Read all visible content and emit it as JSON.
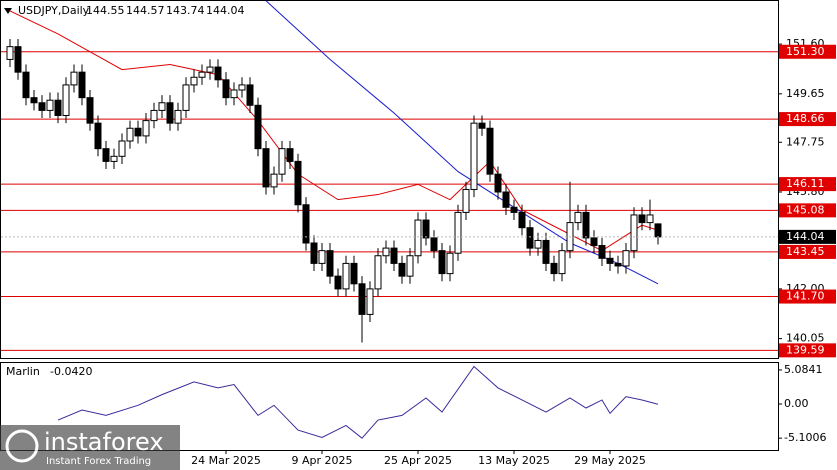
{
  "chart_data": {
    "type": "candlestick",
    "title": "USDJPY,Daily",
    "categories": [
      null,
      null,
      null,
      null,
      null,
      null,
      null,
      null,
      null,
      null,
      null,
      null,
      null,
      null,
      null,
      null,
      null,
      null,
      null,
      null,
      null,
      null,
      null,
      null,
      null,
      null,
      null,
      "24 Mar 2025",
      null,
      null,
      null,
      null,
      null,
      null,
      null,
      null,
      null,
      null,
      null,
      "9 Apr 2025",
      null,
      null,
      null,
      null,
      null,
      null,
      null,
      null,
      null,
      null,
      null,
      "25 Apr 2025",
      null,
      null,
      null,
      null,
      null,
      null,
      null,
      null,
      null,
      null,
      null,
      "13 May 2025",
      null,
      null,
      null,
      null,
      null,
      null,
      null,
      null,
      null,
      null,
      null,
      "29 May 2025",
      null,
      null,
      null,
      null,
      null,
      null
    ],
    "open": [
      151.0,
      151.5,
      150.5,
      149.5,
      149.3,
      149.0,
      149.4,
      148.8,
      150.0,
      150.5,
      149.5,
      148.5,
      147.5,
      147.0,
      147.2,
      147.8,
      148.3,
      148.0,
      148.6,
      149.0,
      149.3,
      148.5,
      149.0,
      150.0,
      150.3,
      150.5,
      150.7,
      150.2,
      149.5,
      149.8,
      150.0,
      149.2,
      147.5,
      146.0,
      146.5,
      147.5,
      147.0,
      145.3,
      143.8,
      143.0,
      143.5,
      142.5,
      142.0,
      143.0,
      142.2,
      141.0,
      142.0,
      143.3,
      143.6,
      143.0,
      142.5,
      143.3,
      144.7,
      144.0,
      143.5,
      142.6,
      143.4,
      145.0,
      145.9,
      148.5,
      148.3,
      146.5,
      145.8,
      145.2,
      145.0,
      144.4,
      143.6,
      143.9,
      143.0,
      142.6,
      143.5,
      144.6,
      145.0,
      144.0,
      143.7,
      143.2,
      143.0,
      142.9,
      143.5,
      144.9,
      144.6,
      144.55
    ],
    "high": [
      151.8,
      151.8,
      150.8,
      149.8,
      149.6,
      149.7,
      149.7,
      150.3,
      150.8,
      150.8,
      149.8,
      148.8,
      147.8,
      147.5,
      148.1,
      148.6,
      148.6,
      148.9,
      149.3,
      149.6,
      149.6,
      149.3,
      150.3,
      150.6,
      150.8,
      151.0,
      151.0,
      150.5,
      150.1,
      150.3,
      150.3,
      149.5,
      147.8,
      146.8,
      147.8,
      147.8,
      147.3,
      145.6,
      144.1,
      143.8,
      143.8,
      142.8,
      143.3,
      143.3,
      142.5,
      142.3,
      143.6,
      143.9,
      143.9,
      143.3,
      143.6,
      145.0,
      145.0,
      144.3,
      143.8,
      143.7,
      145.3,
      146.2,
      148.8,
      148.8,
      148.6,
      146.8,
      146.1,
      145.5,
      145.3,
      144.7,
      144.2,
      144.2,
      143.3,
      143.8,
      146.2,
      145.3,
      145.3,
      144.3,
      144.0,
      143.5,
      143.3,
      143.8,
      145.2,
      145.2,
      145.5,
      144.57
    ],
    "low": [
      150.7,
      150.2,
      149.2,
      149.0,
      148.7,
      148.7,
      148.5,
      148.5,
      149.7,
      149.2,
      148.2,
      147.2,
      146.7,
      146.7,
      146.9,
      147.5,
      147.7,
      147.7,
      148.3,
      148.7,
      148.2,
      148.2,
      148.7,
      149.7,
      150.0,
      150.2,
      149.9,
      149.2,
      149.2,
      149.5,
      148.9,
      147.2,
      145.7,
      145.7,
      146.2,
      146.7,
      145.0,
      143.5,
      142.7,
      142.7,
      142.2,
      141.7,
      141.7,
      141.9,
      139.9,
      140.7,
      141.7,
      143.0,
      142.7,
      142.2,
      142.2,
      143.0,
      143.7,
      143.2,
      142.3,
      142.3,
      143.1,
      144.7,
      145.6,
      148.0,
      146.2,
      145.5,
      144.9,
      144.7,
      144.1,
      143.3,
      143.3,
      142.7,
      142.3,
      142.3,
      143.2,
      144.3,
      143.7,
      143.4,
      142.9,
      142.7,
      142.6,
      142.6,
      143.2,
      144.3,
      144.3,
      143.74
    ],
    "close": [
      151.5,
      150.5,
      149.5,
      149.3,
      149.0,
      149.4,
      148.8,
      150.0,
      150.5,
      149.5,
      148.5,
      147.5,
      147.0,
      147.2,
      147.8,
      148.3,
      148.0,
      148.6,
      149.0,
      149.3,
      148.5,
      149.0,
      150.0,
      150.3,
      150.5,
      150.7,
      150.2,
      149.5,
      149.8,
      150.0,
      149.2,
      147.5,
      146.0,
      146.5,
      147.5,
      147.0,
      145.3,
      143.8,
      143.0,
      143.5,
      142.5,
      142.0,
      143.0,
      142.2,
      141.0,
      142.0,
      143.3,
      143.6,
      143.0,
      142.5,
      143.3,
      144.7,
      144.0,
      143.5,
      142.6,
      143.4,
      145.0,
      145.9,
      148.5,
      148.3,
      146.5,
      145.8,
      145.2,
      145.0,
      144.4,
      143.6,
      143.9,
      143.0,
      142.6,
      143.5,
      144.6,
      145.0,
      144.0,
      143.7,
      143.2,
      143.0,
      142.9,
      143.5,
      144.9,
      144.6,
      144.9,
      144.04
    ],
    "up_color": "#ffffff",
    "down_color": "#000000",
    "ylim": [
      139.29,
      153.33
    ],
    "yticks": [
      {
        "value": 151.6,
        "label": "151.60"
      },
      149.65,
      147.75,
      {
        "value": 145.8,
        "label": "145.80"
      },
      {
        "value": 142.0,
        "label": "142.00"
      },
      140.05
    ],
    "overlays": [
      {
        "color": "#e00000",
        "x": [
          0,
          6,
          14,
          20,
          26,
          31,
          36,
          41,
          46,
          51,
          55,
          60,
          64,
          69,
          74,
          79,
          81
        ],
        "values": [
          152.9,
          152.0,
          150.6,
          150.8,
          150.4,
          148.6,
          146.5,
          145.5,
          145.7,
          146.1,
          145.5,
          147.0,
          145.1,
          144.3,
          143.5,
          144.5,
          144.3
        ]
      },
      {
        "color": "#1a1ad0",
        "x": [
          32,
          40,
          48,
          56,
          63,
          70,
          76,
          81
        ],
        "values": [
          153.3,
          151.0,
          148.9,
          146.6,
          145.2,
          143.8,
          143.0,
          142.2
        ]
      }
    ],
    "levels": [
      {
        "value": 151.3,
        "label": "151.30"
      },
      148.66,
      146.11,
      145.08,
      143.45,
      {
        "value": 141.7,
        "label": "141.70"
      },
      139.59
    ],
    "level_color": "#e00000",
    "indicator": {
      "type": "line",
      "name": "Marlin",
      "current": {
        "value": -0.042,
        "label": "-0.0420"
      },
      "color": "#3a2a9a",
      "x": [
        6,
        9,
        12,
        16,
        19,
        23,
        26,
        28,
        31,
        33,
        36,
        39,
        42,
        44,
        46,
        49,
        52,
        54,
        58,
        61,
        64,
        67,
        70,
        72,
        74,
        75,
        77,
        79,
        81
      ],
      "values": [
        -2.4,
        -0.9,
        -1.7,
        -0.2,
        1.4,
        3.3,
        2.4,
        2.9,
        -1.7,
        -0.2,
        -3.9,
        -5.0,
        -3.2,
        -5.1,
        -2.4,
        -1.7,
        0.9,
        -1.2,
        5.6,
        2.4,
        0.6,
        -1.2,
        0.9,
        -0.6,
        0.6,
        -1.4,
        1.1,
        0.6,
        -0.042
      ],
      "ylim": [
        -6.87,
        6.27
      ],
      "yticks": [
        5.0841,
        {
          "value": 0,
          "label": "0.00"
        },
        -5.1006
      ]
    },
    "watermark": {
      "brand": "instaforex",
      "slogan": "Instant Forex Trading"
    }
  }
}
